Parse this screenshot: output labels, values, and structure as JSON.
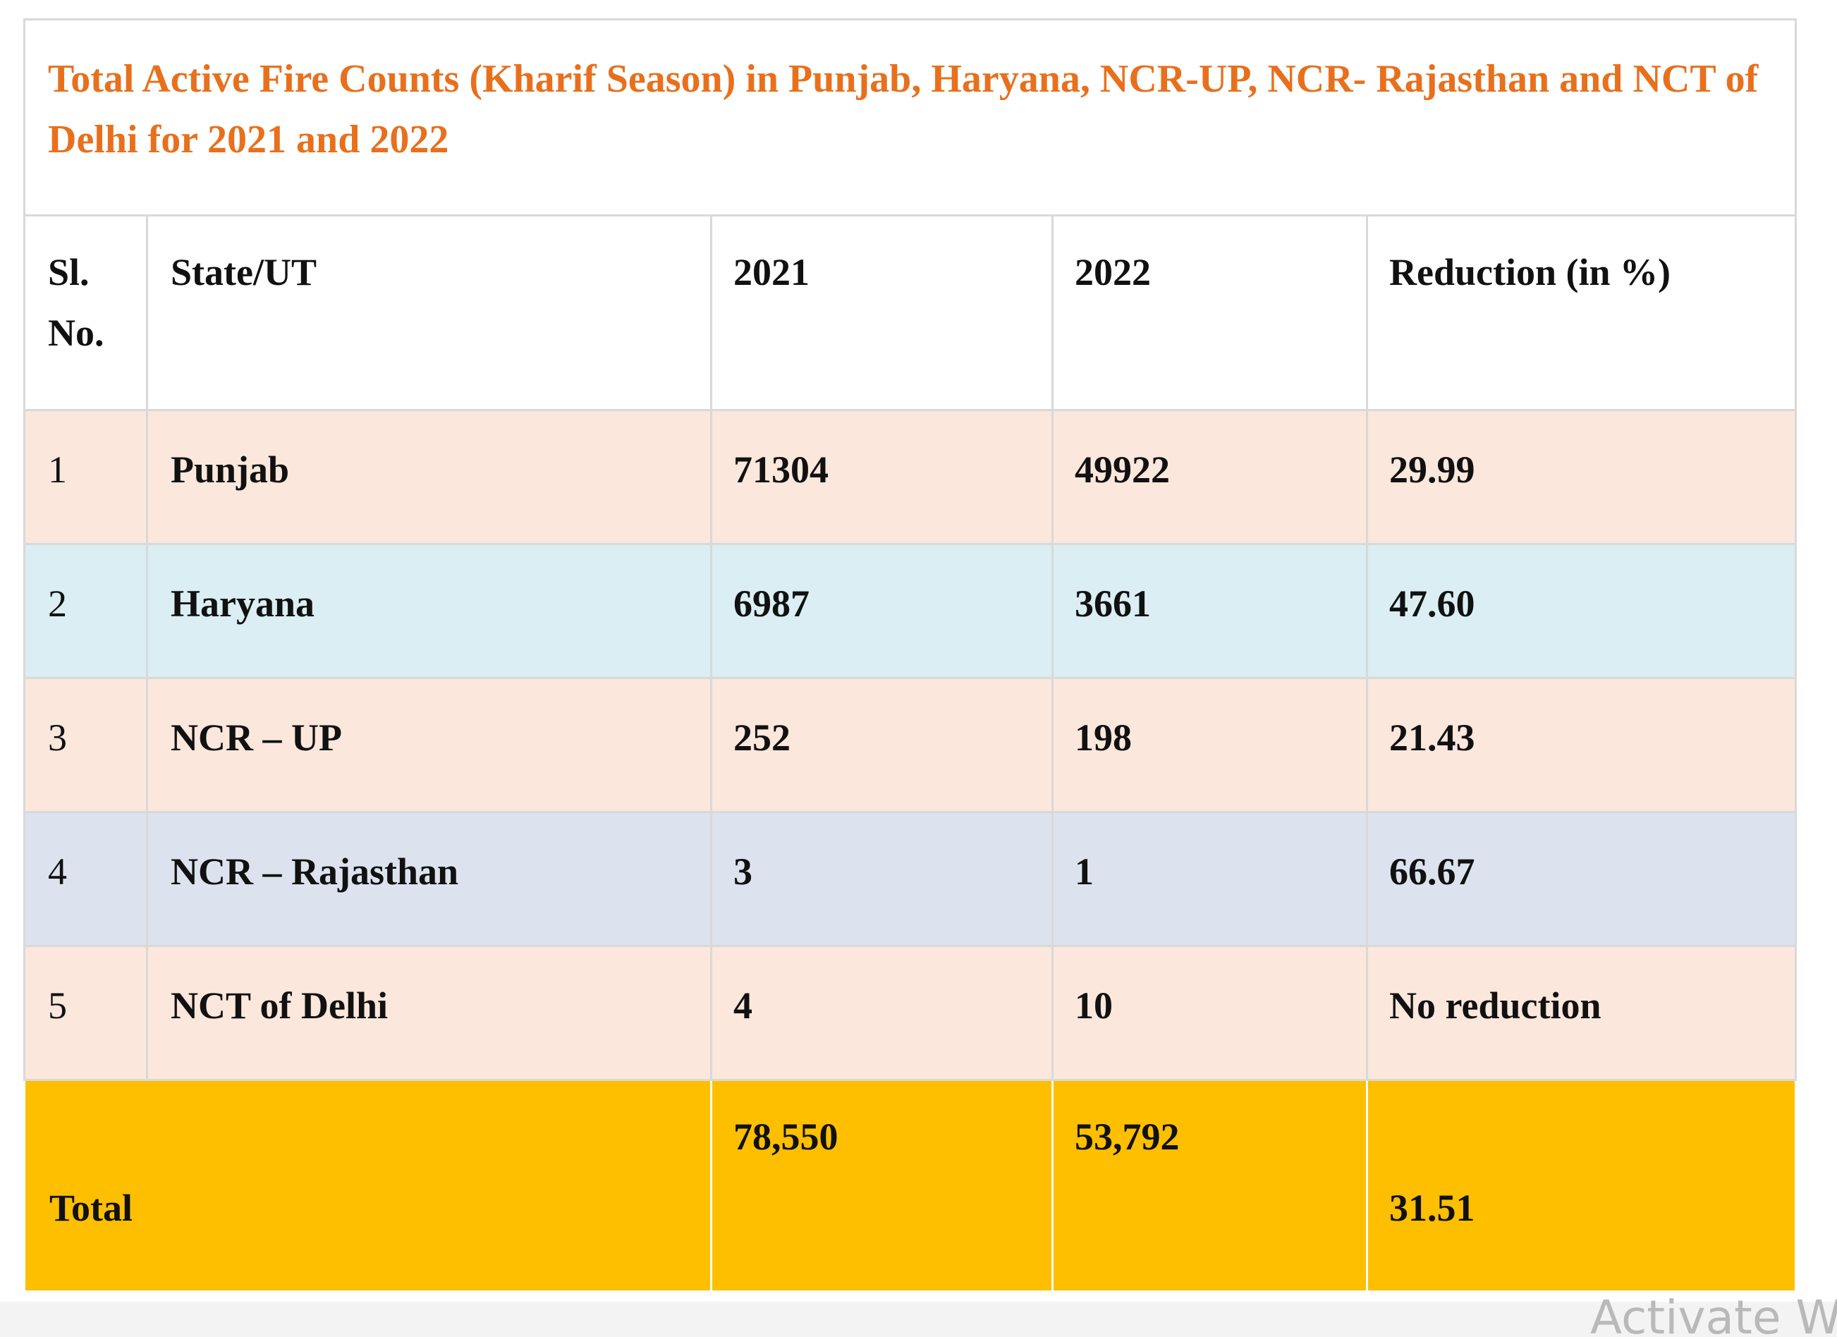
{
  "table": {
    "title": "Total Active Fire Counts (Kharif Season) in Punjab, Haryana, NCR-UP, NCR- Rajasthan and NCT of Delhi for 2021 and 2022",
    "headers": {
      "sl": "Sl. No.",
      "state": "State/UT",
      "year1": "2021",
      "year2": "2022",
      "reduction": "Reduction (in %)"
    },
    "rows": [
      {
        "sl": "1",
        "state": "Punjab",
        "y2021": "71304",
        "y2022": "49922",
        "reduction": "29.99",
        "bg": "#fbe7dc"
      },
      {
        "sl": "2",
        "state": "Haryana",
        "y2021": "6987",
        "y2022": "3661",
        "reduction": "47.60",
        "bg": "#daeef3"
      },
      {
        "sl": "3",
        "state": "NCR – UP",
        "y2021": "252",
        "y2022": "198",
        "reduction": "21.43",
        "bg": "#fbe7dc"
      },
      {
        "sl": "4",
        "state": "NCR – Rajasthan",
        "y2021": "3",
        "y2022": "1",
        "reduction": "66.67",
        "bg": "#dce3ef"
      },
      {
        "sl": "5",
        "state": "NCT of Delhi",
        "y2021": "4",
        "y2022": "10",
        "reduction": "No reduction",
        "bg": "#fbe7dc"
      }
    ],
    "total": {
      "label": "Total",
      "y2021": "78,550",
      "y2022": "53,792",
      "reduction": "31.51",
      "bg": "#fdbf00"
    },
    "colors": {
      "title": "#e8701d",
      "border": "#d9d9d9"
    }
  },
  "watermark": "Activate W"
}
